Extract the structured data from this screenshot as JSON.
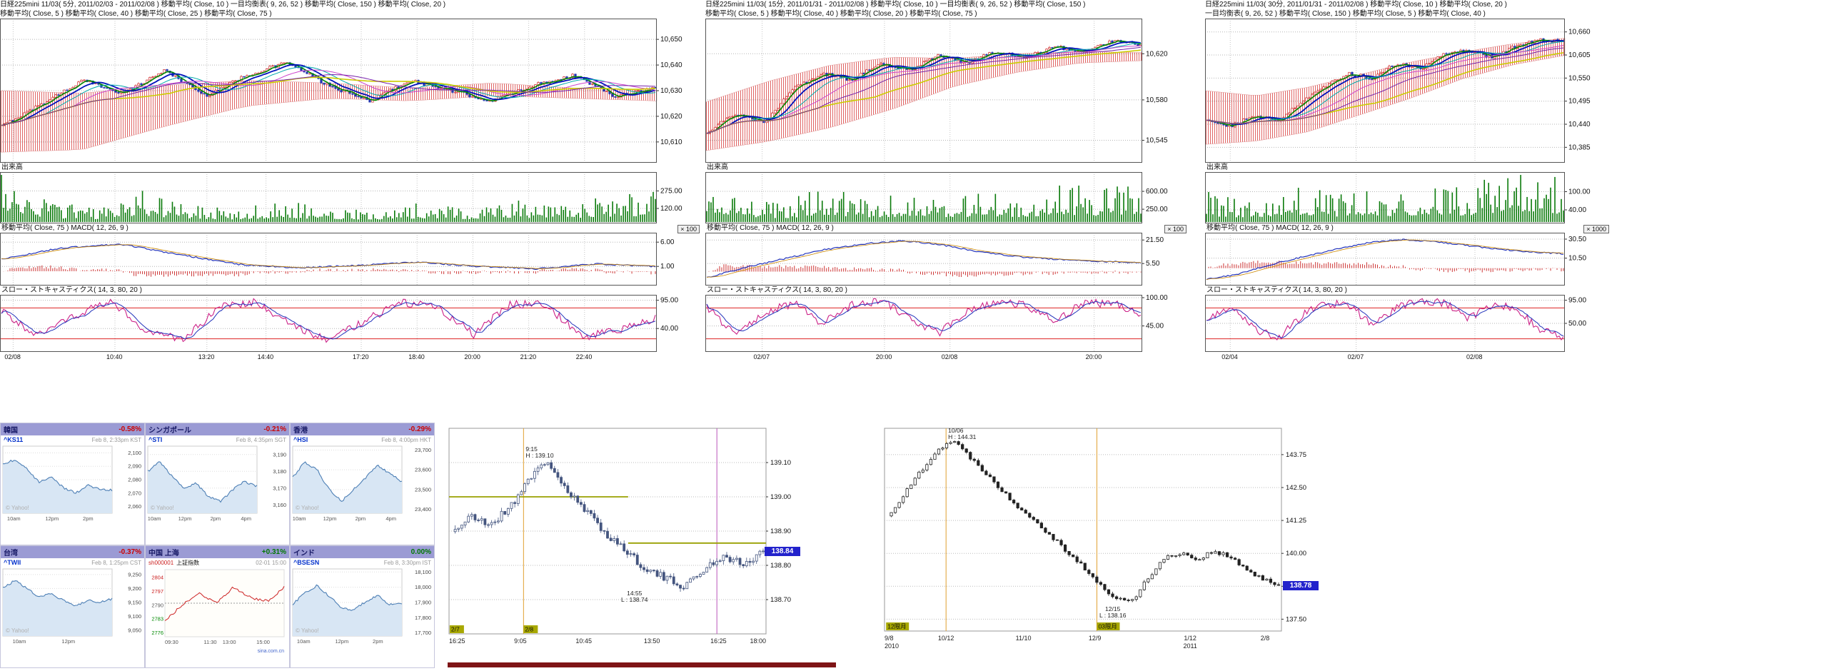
{
  "palette": {
    "negative": "#cc0000",
    "positive": "#008800",
    "widget_header_bg": "#9b9bd4",
    "price_tag_bg": "#2222cc",
    "session_badge_bg": "#a8a800",
    "scrollbar": "#7e1416",
    "candle_up": "#cc2222",
    "candle_down": "#2236b0",
    "cloud_hatch": "#e06565",
    "volume_bar": "#0a7a0a"
  },
  "chart_data": [
    {
      "id": "nikkei225mini-5min",
      "type": "candlestick",
      "header1": "日経225mini 11/03( 5分, 2011/02/03 - 2011/02/08 )   移動平均( Close, 10 )   一目均衡表( 9, 26, 52 )   移動平均( Close, 150 )   移動平均( Close, 20 )",
      "header2": "移動平均( Close, 5 )   移動平均( Close, 40 )   移動平均( Close, 25 )   移動平均( Close, 75 )",
      "ylim": [
        10603,
        10657
      ],
      "yticks": [
        {
          "v": 10650,
          "t": "10,650"
        },
        {
          "v": 10640,
          "t": "10,640"
        },
        {
          "v": 10630,
          "t": "10,630"
        },
        {
          "v": 10620,
          "t": "10,620"
        },
        {
          "v": 10610,
          "t": "10,610"
        }
      ],
      "close_keypoints": [
        10616,
        10625,
        10634,
        10629,
        10638,
        10628,
        10636,
        10641,
        10632,
        10626,
        10634,
        10630,
        10626,
        10632,
        10636,
        10628,
        10631
      ],
      "cloud_top": [
        10630,
        10629,
        10632,
        10634,
        10633,
        10631,
        10633,
        10631,
        10630
      ],
      "cloud_bottom": [
        10606,
        10607,
        10616,
        10624,
        10627,
        10626,
        10628,
        10627,
        10626
      ],
      "volume_label": "出来高",
      "volume_unit": "× 100",
      "vol_max": 430,
      "vol_ticks": [
        {
          "v": 275,
          "t": "275.00"
        },
        {
          "v": 120,
          "t": "120.00"
        }
      ],
      "volume_profile": [
        1,
        0.32,
        0.22,
        0.5,
        0.28,
        0.2,
        0.34,
        0.24,
        0.2,
        0.3,
        0.24,
        0.36,
        0.28,
        0.4,
        0.52
      ],
      "macd_label": "移動平均( Close, 75 )   MACD( 12, 26, 9 )",
      "macd_ylim": [
        -2.5,
        7.5
      ],
      "macd_ticks": [
        {
          "v": 6,
          "t": "6.00"
        },
        {
          "v": 1,
          "t": "1.00"
        }
      ],
      "macd_keypoints": [
        2.5,
        4.8,
        5.6,
        3.4,
        1.4,
        0.7,
        1.2,
        1.9,
        1.0,
        0.5,
        1.5,
        1.0
      ],
      "stoch_label": "スロー・ストキャスティクス( 14, 3, 80, 20 )",
      "stoch_ticks": [
        {
          "v": 95,
          "t": "95.00"
        },
        {
          "v": 40,
          "t": "40.00"
        }
      ],
      "stoch_keypoints": [
        75,
        25,
        65,
        92,
        35,
        18,
        82,
        93,
        45,
        18,
        55,
        90,
        82,
        28,
        88,
        86,
        22,
        38,
        60
      ],
      "x_labels": [
        {
          "t": "02/08",
          "p": 0.02
        },
        {
          "t": "10:40",
          "p": 0.175
        },
        {
          "t": "13:20",
          "p": 0.315
        },
        {
          "t": "14:40",
          "p": 0.405
        },
        {
          "t": "17:20",
          "p": 0.55
        },
        {
          "t": "18:40",
          "p": 0.635
        },
        {
          "t": "20:00",
          "p": 0.72
        },
        {
          "t": "21:20",
          "p": 0.805
        },
        {
          "t": "22:40",
          "p": 0.89
        }
      ]
    },
    {
      "id": "nikkei225mini-15min",
      "type": "candlestick",
      "header1": "日経225mini 11/03( 15分, 2011/01/31 - 2011/02/08 )   移動平均( Close, 10 )   一目均衡表( 9, 26, 52 )   移動平均( Close, 150 )",
      "header2": "移動平均( Close, 5 )   移動平均( Close, 40 )   移動平均( Close, 20 )   移動平均( Close, 75 )",
      "ylim": [
        10528,
        10648
      ],
      "yticks": [
        {
          "v": 10620,
          "t": "10,620"
        },
        {
          "v": 10580,
          "t": "10,580"
        },
        {
          "v": 10545,
          "t": "10,545"
        }
      ],
      "close_keypoints": [
        10552,
        10568,
        10560,
        10590,
        10603,
        10597,
        10612,
        10606,
        10618,
        10612,
        10622,
        10617,
        10626,
        10622,
        10631,
        10628
      ],
      "cloud_top": [
        10578,
        10596,
        10610,
        10617,
        10616,
        10620,
        10622,
        10621
      ],
      "cloud_bottom": [
        10536,
        10544,
        10556,
        10572,
        10592,
        10604,
        10612,
        10614
      ],
      "volume_label": "出来高",
      "volume_unit": "× 100",
      "vol_max": 950,
      "vol_ticks": [
        {
          "v": 600,
          "t": "600.00"
        },
        {
          "v": 250,
          "t": "250.00"
        }
      ],
      "volume_profile": [
        0.85,
        0.4,
        0.3,
        0.6,
        0.35,
        0.45,
        0.3,
        0.5,
        0.4,
        0.6,
        0.5,
        0.68
      ],
      "macd_label": "移動平均( Close, 75 )   MACD( 12, 26, 9 )",
      "macd_ylim": [
        -8,
        25
      ],
      "macd_ticks": [
        {
          "v": 21.5,
          "t": "21.50"
        },
        {
          "v": 5.5,
          "t": "5.50"
        }
      ],
      "macd_keypoints": [
        -4,
        3,
        9,
        15,
        19,
        21,
        18,
        13,
        10,
        8,
        7,
        6
      ],
      "stoch_label": "スロー・ストキャスティクス( 14, 3, 80, 20 )",
      "stoch_ticks": [
        {
          "v": 100,
          "t": "100.00"
        },
        {
          "v": 45,
          "t": "45.00"
        }
      ],
      "stoch_keypoints": [
        80,
        30,
        70,
        90,
        50,
        85,
        95,
        60,
        30,
        75,
        92,
        85,
        55,
        88,
        90,
        70
      ],
      "x_labels": [
        {
          "t": "02/07",
          "p": 0.13
        },
        {
          "t": "20:00",
          "p": 0.41
        },
        {
          "t": "02/08",
          "p": 0.56
        },
        {
          "t": "20:00",
          "p": 0.89
        }
      ]
    },
    {
      "id": "nikkei225mini-30min",
      "type": "candlestick",
      "header1": "日経225mini 11/03( 30分, 2011/01/31 - 2011/02/08 )   移動平均( Close, 10 )   移動平均( Close, 20 )",
      "header2": "一目均衡表( 9, 26, 52 )   移動平均( Close, 150 )   移動平均( Close, 5 )   移動平均( Close, 40 )",
      "ylim": [
        10355,
        10685
      ],
      "y ticks_note": "",
      "yticks": [
        {
          "v": 10660,
          "t": "10,660"
        },
        {
          "v": 10605,
          "t": "10,605"
        },
        {
          "v": 10550,
          "t": "10,550"
        },
        {
          "v": 10495,
          "t": "10,495"
        },
        {
          "v": 10440,
          "t": "10,440"
        },
        {
          "v": 10385,
          "t": "10,385"
        }
      ],
      "close_keypoints": [
        10450,
        10435,
        10462,
        10448,
        10492,
        10532,
        10560,
        10550,
        10586,
        10572,
        10606,
        10616,
        10600,
        10626,
        10642,
        10636
      ],
      "cloud_top": [
        10520,
        10508,
        10528,
        10558,
        10588,
        10612,
        10632,
        10645
      ],
      "cloud_bottom": [
        10392,
        10400,
        10422,
        10462,
        10502,
        10548,
        10582,
        10604
      ],
      "volume_label": "出来高",
      "volume_unit": "× 1000",
      "vol_max": 160,
      "vol_ticks": [
        {
          "v": 100,
          "t": "100.00"
        },
        {
          "v": 40,
          "t": "40.00"
        }
      ],
      "volume_profile": [
        0.5,
        0.35,
        0.45,
        0.6,
        0.4,
        0.55,
        0.45,
        0.65,
        0.5,
        0.8,
        0.9,
        0.62
      ],
      "macd_label": "移動平均( Close, 75 )   MACD( 12, 26, 9 )",
      "macd_ylim": [
        -16,
        35
      ],
      "macd_ticks": [
        {
          "v": 30.5,
          "t": "30.50"
        },
        {
          "v": 10.5,
          "t": "10.50"
        }
      ],
      "macd_keypoints": [
        -12,
        -6,
        4,
        12,
        20,
        27,
        30,
        28,
        24,
        20,
        17,
        15
      ],
      "stoch_label": "スロー・ストキャスティクス( 14, 3, 80, 20 )",
      "stoch_ticks": [
        {
          "v": 95,
          "t": "95.00"
        },
        {
          "v": 50,
          "t": "50.00"
        }
      ],
      "stoch_keypoints": [
        60,
        85,
        40,
        20,
        65,
        90,
        85,
        45,
        80,
        95,
        90,
        60,
        85,
        80,
        35,
        25
      ],
      "x_labels": [
        {
          "t": "02/04",
          "p": 0.07
        },
        {
          "t": "02/07",
          "p": 0.42
        },
        {
          "t": "02/08",
          "p": 0.75
        }
      ]
    },
    {
      "id": "futures-intraday-5min",
      "type": "candlestick",
      "ylim": [
        138.6,
        139.2
      ],
      "yticks": [
        {
          "v": 139.1,
          "t": "139.10"
        },
        {
          "v": 139.0,
          "t": "139.00"
        },
        {
          "v": 138.9,
          "t": "138.90"
        },
        {
          "v": 138.8,
          "t": "138.80"
        },
        {
          "v": 138.7,
          "t": "138.70"
        }
      ],
      "close_keypoints": [
        138.9,
        138.94,
        138.92,
        138.97,
        139.06,
        139.1,
        139.01,
        138.95,
        138.89,
        138.84,
        138.79,
        138.76,
        138.74,
        138.79,
        138.83,
        138.8,
        138.84
      ],
      "x_labels": [
        {
          "t": "16:25",
          "p": 0.0
        },
        {
          "t": "9:05",
          "p": 0.225
        },
        {
          "t": "10:45",
          "p": 0.425
        },
        {
          "t": "13:50",
          "p": 0.64
        },
        {
          "t": "16:25",
          "p": 0.85
        },
        {
          "t": "18:00",
          "p": 1.0
        }
      ],
      "session_tags": [
        {
          "t": "2/7",
          "p": 0.002
        },
        {
          "t": "2/8",
          "p": 0.235
        }
      ],
      "ref_lines": [
        {
          "v": 139.0,
          "a": 0.0,
          "b": 0.565
        },
        {
          "v": 138.865,
          "a": 0.565,
          "b": 1.0
        }
      ],
      "vlines": [
        {
          "p": 0.235,
          "c": "#e0a030"
        },
        {
          "p": 0.845,
          "c": "#bb55bb"
        }
      ],
      "annotations": {
        "high": {
          "t1": "9:15",
          "t2": "H : 139.10",
          "p": 0.235,
          "v": 139.1
        },
        "low": {
          "t1": "14:55",
          "t2": "L : 138.74",
          "p": 0.585,
          "v": 138.74
        }
      },
      "last_price": "138.84",
      "last_price_v": 138.84
    },
    {
      "id": "futures-daily",
      "type": "candlestick",
      "ylim": [
        137.05,
        144.75
      ],
      "yticks": [
        {
          "v": 143.75,
          "t": "143.75"
        },
        {
          "v": 142.5,
          "t": "142.50"
        },
        {
          "v": 141.25,
          "t": "141.25"
        },
        {
          "v": 140.0,
          "t": "140.00"
        },
        {
          "v": 138.75,
          "t": "138.75"
        },
        {
          "v": 137.5,
          "t": "137.50"
        }
      ],
      "close_keypoints": [
        141.4,
        142.2,
        143.1,
        143.9,
        144.31,
        143.7,
        143.1,
        142.4,
        141.8,
        141.3,
        140.7,
        140.1,
        139.5,
        138.8,
        138.3,
        138.16,
        139.1,
        139.8,
        140.05,
        139.75,
        140.1,
        139.85,
        139.4,
        139.0,
        138.78
      ],
      "x_labels": [
        {
          "t": "9/8",
          "p": 0.0,
          "sub": "2010"
        },
        {
          "t": "10/12",
          "p": 0.155
        },
        {
          "t": "11/10",
          "p": 0.35
        },
        {
          "t": "12/9",
          "p": 0.53
        },
        {
          "t": "1/12",
          "p": 0.77,
          "sub": "2011"
        },
        {
          "t": "2/8",
          "p": 0.97
        }
      ],
      "badges": [
        {
          "t": "12限月",
          "p": 0.004
        },
        {
          "t": "03限月",
          "p": 0.535
        }
      ],
      "vlines": [
        {
          "p": 0.155,
          "c": "#e0a030"
        },
        {
          "p": 0.535,
          "c": "#e0a030"
        }
      ],
      "annotations": {
        "high": {
          "t1": "10/06",
          "t2": "H : 144.31",
          "p": 0.155,
          "v": 144.31
        },
        "low": {
          "t1": "12/15",
          "t2": "L : 138.16",
          "p": 0.575,
          "v": 138.16
        }
      },
      "last_price": "138.78",
      "last_price_v": 138.78
    }
  ],
  "world_markets": [
    {
      "name": "韓国",
      "change": "-0.58%",
      "change_style": "color:#cc0000",
      "symbol": "^KS11",
      "datetime": "Feb 8, 2:33pm KST",
      "watermark": "© Yahoo!",
      "style": "yahoo",
      "ylim": [
        2055,
        2105
      ],
      "yticks": [
        {
          "v": 2100,
          "t": "2,100"
        },
        {
          "v": 2090,
          "t": "2,090"
        },
        {
          "v": 2080,
          "t": "2,080"
        },
        {
          "v": 2070,
          "t": "2,070"
        },
        {
          "v": 2060,
          "t": "2,060"
        }
      ],
      "x_labels": [
        {
          "t": "10am",
          "p": 0.1
        },
        {
          "t": "12pm",
          "p": 0.45
        },
        {
          "t": "2pm",
          "p": 0.78
        }
      ],
      "keypoints": [
        2091,
        2095,
        2088,
        2078,
        2082,
        2074,
        2070,
        2076,
        2073,
        2072
      ]
    },
    {
      "name": "シンガポール",
      "change": "-0.21%",
      "change_style": "color:#cc0000",
      "symbol": "^STI",
      "datetime": "Feb 8, 4:35pm SGT",
      "watermark": "© Yahoo!",
      "style": "yahoo",
      "ylim": [
        3155,
        3195
      ],
      "yticks": [
        {
          "v": 3190,
          "t": "3,190"
        },
        {
          "v": 3180,
          "t": "3,180"
        },
        {
          "v": 3170,
          "t": "3,170"
        },
        {
          "v": 3160,
          "t": "3,160"
        }
      ],
      "x_labels": [
        {
          "t": "10am",
          "p": 0.06
        },
        {
          "t": "12pm",
          "p": 0.34
        },
        {
          "t": "2pm",
          "p": 0.62
        },
        {
          "t": "4pm",
          "p": 0.9
        }
      ],
      "keypoints": [
        3180,
        3186,
        3177,
        3170,
        3173,
        3165,
        3162,
        3169,
        3174,
        3171
      ]
    },
    {
      "name": "香港",
      "change": "-0.29%",
      "change_style": "color:#cc0000",
      "symbol": "^HSI",
      "datetime": "Feb 8, 4:00pm HKT",
      "watermark": "© Yahoo!",
      "style": "yahoo",
      "ylim": [
        23380,
        23720
      ],
      "yticks": [
        {
          "v": 23700,
          "t": "23,700"
        },
        {
          "v": 23600,
          "t": "23,600"
        },
        {
          "v": 23500,
          "t": "23,500"
        },
        {
          "v": 23400,
          "t": "23,400"
        }
      ],
      "x_labels": [
        {
          "t": "10am",
          "p": 0.06
        },
        {
          "t": "12pm",
          "p": 0.34
        },
        {
          "t": "2pm",
          "p": 0.62
        },
        {
          "t": "4pm",
          "p": 0.9
        }
      ],
      "keypoints": [
        23560,
        23640,
        23600,
        23500,
        23440,
        23500,
        23560,
        23620,
        23580,
        23540
      ]
    },
    {
      "name": "台湾",
      "change": "-0.37%",
      "change_style": "color:#cc0000",
      "symbol": "^TWII",
      "datetime": "Feb 8, 1:25pm CST",
      "watermark": "© Yahoo!",
      "style": "yahoo",
      "ylim": [
        9030,
        9270
      ],
      "yticks": [
        {
          "v": 9250,
          "t": "9,250"
        },
        {
          "v": 9200,
          "t": "9,200"
        },
        {
          "v": 9150,
          "t": "9,150"
        },
        {
          "v": 9100,
          "t": "9,100"
        },
        {
          "v": 9050,
          "t": "9,050"
        }
      ],
      "x_labels": [
        {
          "t": "10am",
          "p": 0.15
        },
        {
          "t": "12pm",
          "p": 0.6
        }
      ],
      "keypoints": [
        9205,
        9228,
        9200,
        9170,
        9185,
        9155,
        9140,
        9158,
        9150,
        9162
      ]
    },
    {
      "name": "中国 上海",
      "change": "+0.31%",
      "change_style": "color:#007700",
      "style": "sina",
      "code": "sh000001",
      "title": "上証指数",
      "datetime": "02-01 15:00",
      "watermark": "sina.com.cn",
      "ylim": [
        2774,
        2808
      ],
      "yticks": [
        {
          "v": 2804,
          "t": "2804",
          "c": "#cc2222"
        },
        {
          "v": 2797,
          "t": "2797",
          "c": "#cc2222"
        },
        {
          "v": 2790,
          "t": "2790",
          "c": "#555555"
        },
        {
          "v": 2783,
          "t": "2783",
          "c": "#008800"
        },
        {
          "v": 2776,
          "t": "2776",
          "c": "#008800"
        }
      ],
      "x_labels": [
        {
          "t": "09:30",
          "p": 0.0
        },
        {
          "t": "11:30",
          "p": 0.38
        },
        {
          "t": "13:00",
          "p": 0.54
        },
        {
          "t": "15:00",
          "p": 0.88
        }
      ],
      "keypoints": [
        2782,
        2790,
        2796,
        2791,
        2799,
        2794,
        2792,
        2799
      ]
    },
    {
      "name": "インド",
      "change": "0.00%",
      "change_style": "color:#007700",
      "symbol": "^BSESN",
      "datetime": "Feb 8, 3:30pm IST",
      "watermark": "© Yahoo!",
      "style": "yahoo",
      "ylim": [
        17680,
        18120
      ],
      "yticks": [
        {
          "v": 18100,
          "t": "18,100"
        },
        {
          "v": 18000,
          "t": "18,000"
        },
        {
          "v": 17900,
          "t": "17,900"
        },
        {
          "v": 17800,
          "t": "17,800"
        },
        {
          "v": 17700,
          "t": "17,700"
        }
      ],
      "x_labels": [
        {
          "t": "10am",
          "p": 0.1
        },
        {
          "t": "12pm",
          "p": 0.45
        },
        {
          "t": "2pm",
          "p": 0.78
        }
      ],
      "keypoints": [
        17890,
        17960,
        18010,
        17940,
        17870,
        17850,
        17905,
        17945,
        17885,
        17890
      ]
    }
  ]
}
